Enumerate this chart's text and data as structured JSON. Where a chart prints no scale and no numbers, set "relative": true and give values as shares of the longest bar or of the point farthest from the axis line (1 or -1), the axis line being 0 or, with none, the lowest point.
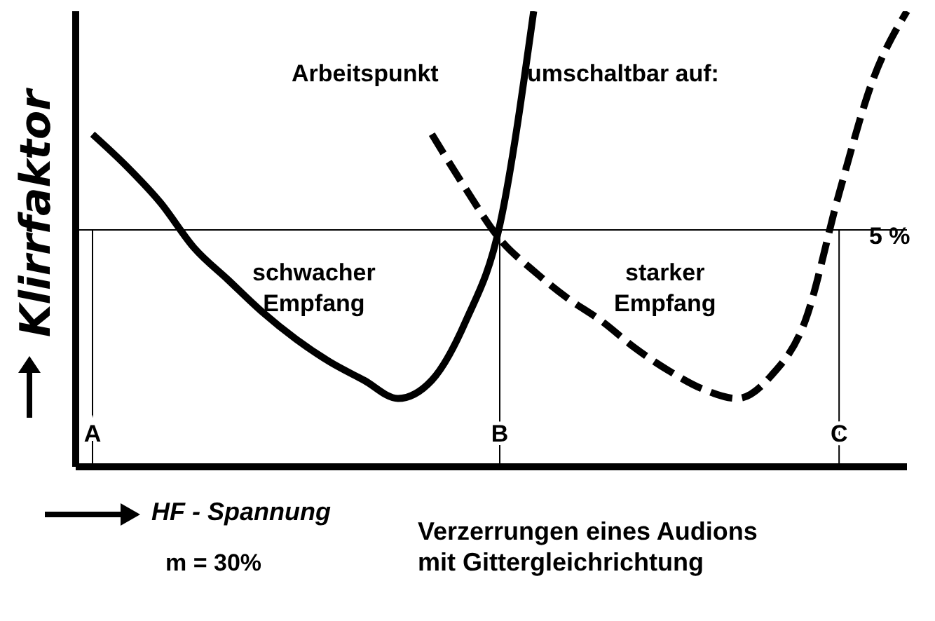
{
  "chart_data": {
    "type": "line",
    "title": "Verzerrungen eines Audions\nmit Gittergleichrichtung",
    "xlabel": "HF - Spannung",
    "ylabel": "Klirrfaktor",
    "relative": true,
    "marker": "none",
    "categories": [
      "A",
      null,
      null,
      null,
      null,
      null,
      null,
      null,
      null,
      null,
      null,
      null,
      "B",
      null,
      null,
      null,
      null,
      null,
      null,
      null,
      null,
      null,
      "C",
      null,
      null
    ],
    "series": [
      {
        "color": "#000000",
        "line_style": "solid",
        "values": [
          0.73,
          0.66,
          0.58,
          0.48,
          0.41,
          0.34,
          0.28,
          0.23,
          0.19,
          0.15,
          0.19,
          0.32,
          0.53,
          1.0,
          null,
          null,
          null,
          null,
          null,
          null,
          null,
          null,
          null,
          null,
          null
        ]
      },
      {
        "color": "#000000",
        "line_style": "dashed",
        "values": [
          null,
          null,
          null,
          null,
          null,
          null,
          null,
          null,
          null,
          null,
          0.73,
          0.61,
          0.5,
          0.43,
          0.37,
          0.32,
          0.26,
          0.21,
          0.17,
          0.15,
          0.2,
          0.32,
          0.6,
          0.85,
          1.0
        ]
      }
    ],
    "ref_lines": [
      {
        "axis": "y",
        "value": 0.52
      },
      {
        "axis": "x",
        "value": "A"
      },
      {
        "axis": "x",
        "value": "B"
      },
      {
        "axis": "x",
        "value": "C"
      }
    ],
    "annotations": [
      "Arbeitspunkt",
      "umschaltbar auf:",
      "schwacher\nEmpfang",
      "starker\nEmpfang",
      "m = 30%",
      "5 %"
    ]
  }
}
